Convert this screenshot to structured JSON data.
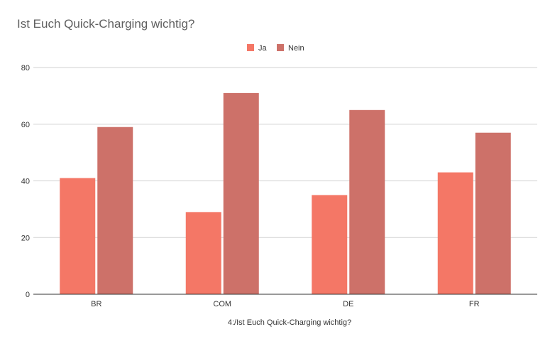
{
  "chart_data": {
    "type": "bar",
    "title": "Ist Euch Quick-Charging wichtig?",
    "xlabel": "4:/Ist Euch Quick-Charging wichtig?",
    "ylabel": "",
    "categories": [
      "BR",
      "COM",
      "DE",
      "FR"
    ],
    "series": [
      {
        "name": "Ja",
        "values": [
          41,
          29,
          35,
          43
        ],
        "color": "#f47766"
      },
      {
        "name": "Nein",
        "values": [
          59,
          71,
          65,
          57
        ],
        "color": "#cd7169"
      }
    ],
    "ylim": [
      0,
      80
    ],
    "yticks": [
      0,
      20,
      40,
      60,
      80
    ],
    "grid": true,
    "legend_position": "top-center"
  }
}
